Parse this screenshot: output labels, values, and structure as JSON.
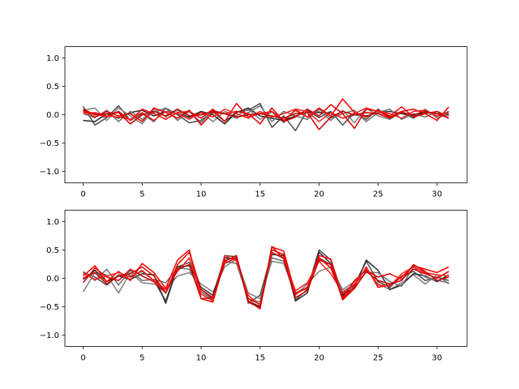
{
  "chart_data": [
    {
      "type": "line",
      "title": "",
      "xlabel": "",
      "ylabel": "",
      "xlim": [
        -1.55,
        32.55
      ],
      "ylim": [
        -1.2,
        1.2
      ],
      "xticks": [
        0,
        5,
        10,
        15,
        20,
        25,
        30
      ],
      "xtick_labels": [
        "0",
        "5",
        "10",
        "15",
        "20",
        "25",
        "30"
      ],
      "yticks": [
        -1.0,
        -0.5,
        0.0,
        0.5,
        1.0
      ],
      "ytick_labels": [
        "−1.0",
        "−0.5",
        "0.0",
        "0.5",
        "1.0"
      ],
      "grid": false,
      "x": [
        0,
        1,
        2,
        3,
        4,
        5,
        6,
        7,
        8,
        9,
        10,
        11,
        12,
        13,
        14,
        15,
        16,
        17,
        18,
        19,
        20,
        21,
        22,
        23,
        24,
        25,
        26,
        27,
        28,
        29,
        30,
        31
      ],
      "series": [
        {
          "color": "#4d4d4d",
          "values": [
            0.15,
            -0.18,
            -0.05,
            0.16,
            -0.1,
            0.02,
            -0.12,
            0.12,
            0.0,
            -0.14,
            -0.1,
            0.05,
            -0.12,
            0.05,
            0.08,
            0.2,
            -0.22,
            -0.02,
            -0.28,
            0.08,
            -0.05,
            0.06,
            -0.18,
            0.04,
            -0.08,
            0.1,
            -0.06,
            0.04,
            -0.06,
            0.08,
            -0.03,
            0.06
          ]
        },
        {
          "color": "#808080",
          "values": [
            0.08,
            0.12,
            -0.1,
            0.12,
            -0.02,
            -0.16,
            0.1,
            -0.04,
            0.08,
            -0.06,
            0.04,
            -0.12,
            0.06,
            -0.02,
            0.1,
            -0.08,
            0.05,
            -0.14,
            0.1,
            -0.04,
            0.06,
            -0.1,
            0.08,
            -0.14,
            0.12,
            -0.02,
            -0.08,
            0.06,
            -0.04,
            0.1,
            -0.06,
            0.02
          ]
        },
        {
          "color": "#2b2b2b",
          "values": [
            -0.1,
            -0.12,
            0.02,
            -0.06,
            0.04,
            0.08,
            -0.02,
            0.06,
            0.02,
            -0.04,
            0.06,
            0.0,
            -0.16,
            0.04,
            0.12,
            -0.02,
            -0.06,
            -0.1,
            -0.02,
            0.05,
            0.04,
            0.03,
            -0.06,
            0.0,
            -0.02,
            0.04,
            0.06,
            0.02,
            -0.02,
            0.04,
            0.02,
            0.0
          ]
        },
        {
          "color": "#6e6e6e",
          "values": [
            0.02,
            -0.05,
            0.08,
            -0.12,
            0.06,
            -0.08,
            0.04,
            0.12,
            -0.1,
            0.06,
            -0.14,
            0.08,
            0.02,
            -0.06,
            0.04,
            0.16,
            -0.12,
            0.06,
            -0.02,
            -0.08,
            0.1,
            -0.06,
            0.02,
            0.08,
            -0.12,
            0.04,
            0.1,
            -0.08,
            0.02,
            -0.04,
            0.06,
            -0.02
          ]
        },
        {
          "color": "#ff0000",
          "values": [
            0.05,
            0.02,
            -0.04,
            0.06,
            -0.1,
            0.1,
            0.02,
            -0.08,
            0.04,
            0.06,
            -0.06,
            0.1,
            -0.12,
            0.2,
            -0.04,
            0.02,
            0.06,
            -0.1,
            0.08,
            -0.04,
            0.12,
            -0.02,
            0.28,
            0.04,
            -0.04,
            0.08,
            -0.02,
            0.14,
            -0.04,
            0.02,
            -0.1,
            0.14
          ]
        },
        {
          "color": "#e00000",
          "values": [
            0.08,
            -0.04,
            0.06,
            -0.02,
            0.02,
            -0.12,
            0.12,
            0.04,
            -0.06,
            0.08,
            -0.18,
            0.04,
            0.02,
            0.06,
            0.02,
            -0.16,
            0.12,
            -0.12,
            -0.04,
            0.1,
            -0.02,
            0.18,
            0.02,
            -0.24,
            0.1,
            0.06,
            -0.04,
            0.06,
            0.1,
            0.02,
            0.06,
            -0.06
          ]
        },
        {
          "color": "#ff2020",
          "values": [
            0.02,
            0.04,
            -0.02,
            -0.04,
            -0.08,
            0.04,
            -0.1,
            0.06,
            0.02,
            -0.08,
            0.04,
            -0.04,
            0.1,
            0.02,
            -0.06,
            0.06,
            -0.04,
            0.02,
            0.1,
            0.06,
            -0.12,
            0.04,
            -0.06,
            0.02,
            0.12,
            0.06,
            0.02,
            -0.06,
            0.06,
            0.08,
            -0.02,
            0.04
          ]
        },
        {
          "color": "#cc0000",
          "values": [
            0.1,
            0.0,
            0.02,
            0.04,
            -0.16,
            0.0,
            0.06,
            -0.02,
            0.1,
            -0.02,
            0.0,
            0.06,
            0.02,
            -0.04,
            0.0,
            0.02,
            -0.02,
            -0.06,
            0.02,
            0.04,
            -0.26,
            -0.04,
            0.06,
            0.0,
            0.04,
            0.02,
            -0.06,
            0.04,
            0.0,
            0.06,
            0.02,
            -0.06
          ]
        }
      ]
    },
    {
      "type": "line",
      "title": "",
      "xlabel": "",
      "ylabel": "",
      "xlim": [
        -1.55,
        32.55
      ],
      "ylim": [
        -1.2,
        1.2
      ],
      "xticks": [
        0,
        5,
        10,
        15,
        20,
        25,
        30
      ],
      "xtick_labels": [
        "0",
        "5",
        "10",
        "15",
        "20",
        "25",
        "30"
      ],
      "yticks": [
        -1.0,
        -0.5,
        0.0,
        0.5,
        1.0
      ],
      "ytick_labels": [
        "−1.0",
        "−0.5",
        "0.0",
        "0.5",
        "1.0"
      ],
      "grid": false,
      "x": [
        0,
        1,
        2,
        3,
        4,
        5,
        6,
        7,
        8,
        9,
        10,
        11,
        12,
        13,
        14,
        15,
        16,
        17,
        18,
        19,
        20,
        21,
        22,
        23,
        24,
        25,
        26,
        27,
        28,
        29,
        30,
        31
      ],
      "series": [
        {
          "color": "#4d4d4d",
          "values": [
            0.1,
            0.02,
            -0.12,
            0.06,
            0.04,
            0.12,
            -0.04,
            -0.4,
            0.2,
            0.28,
            -0.2,
            -0.36,
            0.4,
            0.38,
            -0.44,
            -0.3,
            0.45,
            0.35,
            -0.38,
            -0.2,
            0.5,
            0.32,
            -0.28,
            -0.12,
            0.3,
            -0.06,
            -0.16,
            0.04,
            0.12,
            -0.04,
            0.02,
            -0.04
          ]
        },
        {
          "color": "#808080",
          "values": [
            -0.24,
            0.1,
            0.06,
            -0.26,
            0.1,
            -0.08,
            -0.1,
            -0.2,
            0.04,
            0.1,
            -0.1,
            -0.24,
            0.2,
            0.34,
            -0.26,
            -0.36,
            0.3,
            0.26,
            -0.3,
            -0.1,
            0.12,
            0.2,
            -0.2,
            -0.06,
            0.16,
            -0.1,
            -0.2,
            -0.08,
            0.06,
            -0.1,
            0.06,
            -0.1
          ]
        },
        {
          "color": "#2b2b2b",
          "values": [
            -0.02,
            0.14,
            -0.06,
            0.04,
            -0.02,
            0.08,
            0.06,
            -0.44,
            0.2,
            0.22,
            -0.16,
            -0.3,
            0.36,
            0.34,
            -0.4,
            -0.5,
            0.42,
            0.4,
            -0.4,
            -0.26,
            0.46,
            0.26,
            -0.3,
            -0.16,
            0.32,
            0.14,
            -0.2,
            -0.12,
            0.08,
            0.04,
            -0.06,
            0.06
          ]
        },
        {
          "color": "#6e6e6e",
          "values": [
            0.12,
            -0.04,
            0.16,
            -0.12,
            0.14,
            -0.04,
            -0.02,
            -0.08,
            0.18,
            0.16,
            -0.24,
            -0.38,
            0.3,
            0.26,
            -0.36,
            -0.42,
            0.36,
            0.3,
            -0.26,
            -0.16,
            0.36,
            0.24,
            -0.24,
            -0.1,
            0.1,
            0.1,
            -0.06,
            -0.14,
            0.2,
            0.02,
            -0.04,
            -0.08
          ]
        },
        {
          "color": "#ff0000",
          "values": [
            0.04,
            0.22,
            -0.06,
            0.12,
            -0.04,
            0.26,
            0.1,
            -0.18,
            0.32,
            0.5,
            -0.36,
            -0.42,
            0.32,
            0.36,
            -0.4,
            -0.54,
            0.55,
            0.48,
            -0.28,
            -0.16,
            0.4,
            0.34,
            -0.36,
            -0.14,
            0.2,
            -0.16,
            -0.12,
            0.02,
            0.22,
            0.16,
            0.1,
            0.2
          ]
        },
        {
          "color": "#e00000",
          "values": [
            -0.08,
            0.18,
            0.02,
            -0.04,
            0.16,
            0.04,
            -0.06,
            -0.26,
            0.24,
            0.46,
            -0.2,
            -0.34,
            0.26,
            0.36,
            -0.36,
            -0.46,
            0.5,
            0.42,
            -0.26,
            -0.18,
            0.36,
            0.18,
            -0.34,
            -0.04,
            0.14,
            0.02,
            0.08,
            -0.02,
            0.16,
            0.08,
            0.0,
            0.12
          ]
        },
        {
          "color": "#ff2020",
          "values": [
            0.08,
            -0.02,
            0.04,
            0.1,
            0.02,
            0.14,
            -0.04,
            -0.2,
            0.12,
            0.36,
            -0.28,
            -0.4,
            0.4,
            0.3,
            -0.3,
            -0.48,
            0.46,
            0.36,
            -0.22,
            -0.08,
            0.3,
            0.08,
            -0.26,
            -0.1,
            0.18,
            -0.12,
            -0.14,
            0.08,
            0.2,
            0.1,
            0.06,
            0.04
          ]
        },
        {
          "color": "#cc0000",
          "values": [
            0.0,
            0.1,
            -0.1,
            0.04,
            0.08,
            0.2,
            0.04,
            -0.26,
            0.16,
            0.24,
            -0.36,
            -0.34,
            0.3,
            0.4,
            -0.42,
            -0.52,
            0.56,
            0.34,
            -0.34,
            -0.22,
            0.32,
            0.24,
            -0.38,
            -0.18,
            0.12,
            -0.04,
            -0.1,
            -0.04,
            0.24,
            0.12,
            -0.04,
            0.02
          ]
        }
      ]
    }
  ]
}
